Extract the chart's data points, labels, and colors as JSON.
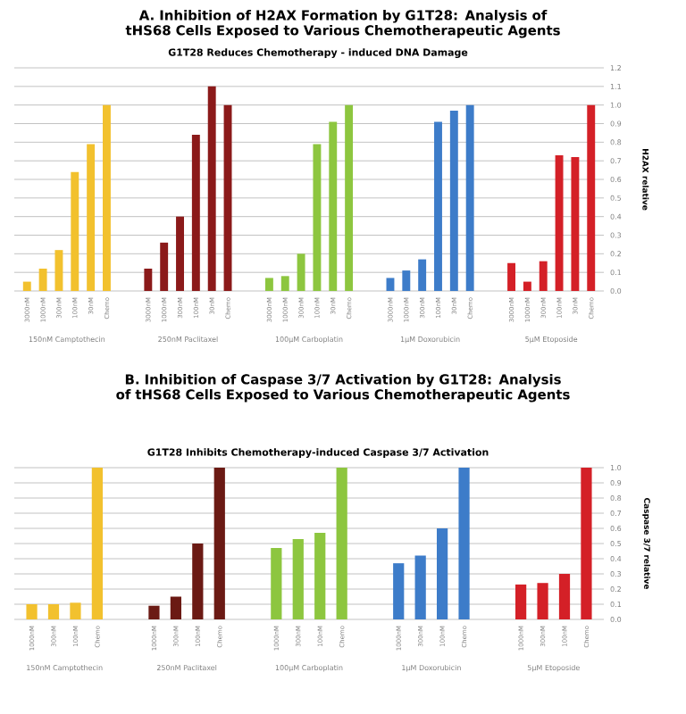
{
  "chart_data": [
    {
      "type": "bar",
      "title": "A. Inhibition of H2AX Formation by G1T28: Analysis of tHS68 Cells Exposed to Various Chemotherapeutic Agents",
      "subtitle": "G1T28 Reduces Chemotherapy - induced DNA Damage",
      "ylabel": "H2AX relative",
      "categories": [
        "3000nM",
        "1000nM",
        "300nM",
        "100nM",
        "30nM",
        "Chemo",
        "3000nM",
        "1000nM",
        "300nM",
        "100nM",
        "30nM",
        "Chemo",
        "3000nM",
        "1000nM",
        "300nM",
        "100nM",
        "30nM",
        "Chemo",
        "3000nM",
        "1000nM",
        "300nM",
        "100nM",
        "30nM",
        "Chemo",
        "3000nM",
        "1000nM",
        "300nM",
        "100nM",
        "30nM",
        "Chemo"
      ],
      "values": [
        0.05,
        0.12,
        0.22,
        0.64,
        0.79,
        1.0,
        0.12,
        0.26,
        0.4,
        0.84,
        1.1,
        1.0,
        0.07,
        0.08,
        0.2,
        0.79,
        0.91,
        1.0,
        0.07,
        0.11,
        0.17,
        0.91,
        0.97,
        1.0,
        0.15,
        0.05,
        0.16,
        0.73,
        0.72,
        1.0
      ],
      "colors": [
        "#f2c12e",
        "#f2c12e",
        "#f2c12e",
        "#f2c12e",
        "#f2c12e",
        "#f2c12e",
        "#8b1a1a",
        "#8b1a1a",
        "#8b1a1a",
        "#8b1a1a",
        "#8b1a1a",
        "#8b1a1a",
        "#8dc63f",
        "#8dc63f",
        "#8dc63f",
        "#8dc63f",
        "#8dc63f",
        "#8dc63f",
        "#3d7cc9",
        "#3d7cc9",
        "#3d7cc9",
        "#3d7cc9",
        "#3d7cc9",
        "#3d7cc9",
        "#d42027",
        "#d42027",
        "#d42027",
        "#d42027",
        "#d42027",
        "#d42027"
      ],
      "annotations": [
        "150nM Camptothecin",
        "250nM Paclitaxel",
        "100μM Carboplatin",
        "1μM Doxorubicin",
        "5μM Etoposide"
      ],
      "ylim": [
        0,
        1.2
      ],
      "yticks": [
        {
          "value": 0,
          "label": "0.0"
        },
        {
          "value": 0.1,
          "label": "0.1"
        },
        {
          "value": 0.2,
          "label": "0.2"
        },
        {
          "value": 0.3,
          "label": "0.3"
        },
        {
          "value": 0.4,
          "label": "0.4"
        },
        {
          "value": 0.5,
          "label": "0.5"
        },
        {
          "value": 0.6,
          "label": "0.6"
        },
        {
          "value": 0.7,
          "label": "0.7"
        },
        {
          "value": 0.8,
          "label": "0.8"
        },
        {
          "value": 0.9,
          "label": "0.9"
        },
        {
          "value": 1.0,
          "label": "1.0"
        },
        {
          "value": 1.1,
          "label": "1.1"
        },
        {
          "value": 1.2,
          "label": "1.2"
        }
      ],
      "grid": "y"
    },
    {
      "type": "bar",
      "title": "B. Inhibition of Caspase 3/7 Activation by G1T28: Analysis of tHS68 Cells Exposed to Various Chemotherapeutic Agents",
      "subtitle": "G1T28 Inhibits Chemotherapy-induced Caspase 3/7 Activation",
      "ylabel": "Caspase 3/7 relative",
      "categories": [
        "1000nM",
        "300nM",
        "100nM",
        "Chemo",
        "1000nM",
        "300nM",
        "100nM",
        "Chemo",
        "1000nM",
        "300nM",
        "100nM",
        "Chemo",
        "1000nM",
        "300nM",
        "100nM",
        "Chemo",
        "1000nM",
        "300nM",
        "100nM",
        "Chemo"
      ],
      "values": [
        0.1,
        0.1,
        0.11,
        1.0,
        0.09,
        0.15,
        0.5,
        1.0,
        0.47,
        0.53,
        0.57,
        1.0,
        0.37,
        0.42,
        0.6,
        1.0,
        0.23,
        0.24,
        0.3,
        1.0
      ],
      "colors": [
        "#f2c12e",
        "#f2c12e",
        "#f2c12e",
        "#f2c12e",
        "#6b1a14",
        "#6b1a14",
        "#6b1a14",
        "#6b1a14",
        "#8dc63f",
        "#8dc63f",
        "#8dc63f",
        "#8dc63f",
        "#3d7cc9",
        "#3d7cc9",
        "#3d7cc9",
        "#3d7cc9",
        "#d42027",
        "#d42027",
        "#d42027",
        "#d42027"
      ],
      "annotations": [
        "150nM Camptothecin",
        "250nM Paclitaxel",
        "100μM Carboplatin",
        "1μM Doxorubicin",
        "5μM Etoposide"
      ],
      "ylim": [
        0,
        1.0
      ],
      "yticks": [
        {
          "value": 0,
          "label": "0.0"
        },
        {
          "value": 0.1,
          "label": "0.1"
        },
        {
          "value": 0.2,
          "label": "0.2"
        },
        {
          "value": 0.3,
          "label": "0.3"
        },
        {
          "value": 0.4,
          "label": "0.4"
        },
        {
          "value": 0.5,
          "label": "0.5"
        },
        {
          "value": 0.6,
          "label": "0.6"
        },
        {
          "value": 0.7,
          "label": "0.7"
        },
        {
          "value": 0.8,
          "label": "0.8"
        },
        {
          "value": 0.9,
          "label": "0.9"
        },
        {
          "value": 1.0,
          "label": "1.0"
        }
      ],
      "grid": "y"
    }
  ]
}
